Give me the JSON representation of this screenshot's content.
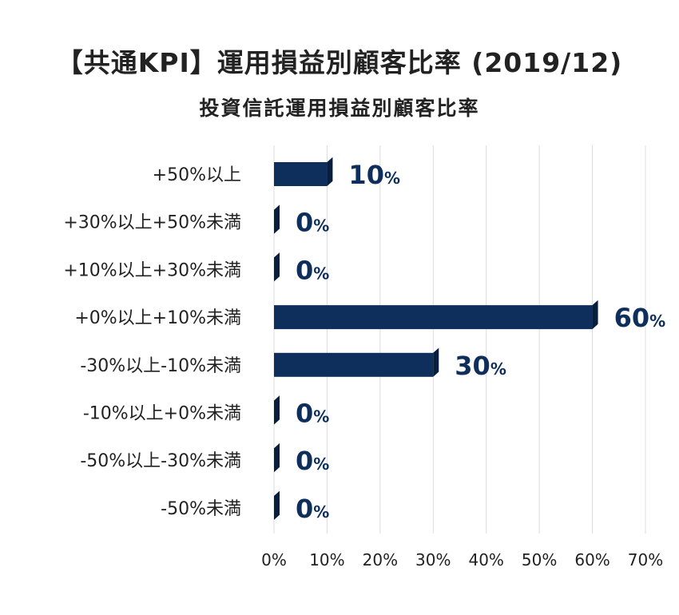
{
  "chart_data": {
    "type": "bar",
    "orientation": "horizontal",
    "title": "【共通KPI】運用損益別顧客比率 (2019/12)",
    "subtitle": "投資信託運用損益別顧客比率",
    "categories": [
      "+50%以上",
      "+30%以上+50%未満",
      "+10%以上+30%未満",
      "+0%以上+10%未満",
      "-30%以上-10%未満",
      "-10%以上+0%未満",
      "-50%以上-30%未満",
      "-50%未満"
    ],
    "values": [
      10,
      0,
      0,
      60,
      30,
      0,
      0,
      0
    ],
    "value_suffix": "%",
    "xlim": [
      0,
      70
    ],
    "xticks": [
      0,
      10,
      20,
      30,
      40,
      50,
      60,
      70
    ],
    "xtick_labels": [
      "0%",
      "10%",
      "20%",
      "30%",
      "40%",
      "50%",
      "60%",
      "70%"
    ],
    "grid": true,
    "bar_color": "#0e2f5c"
  }
}
